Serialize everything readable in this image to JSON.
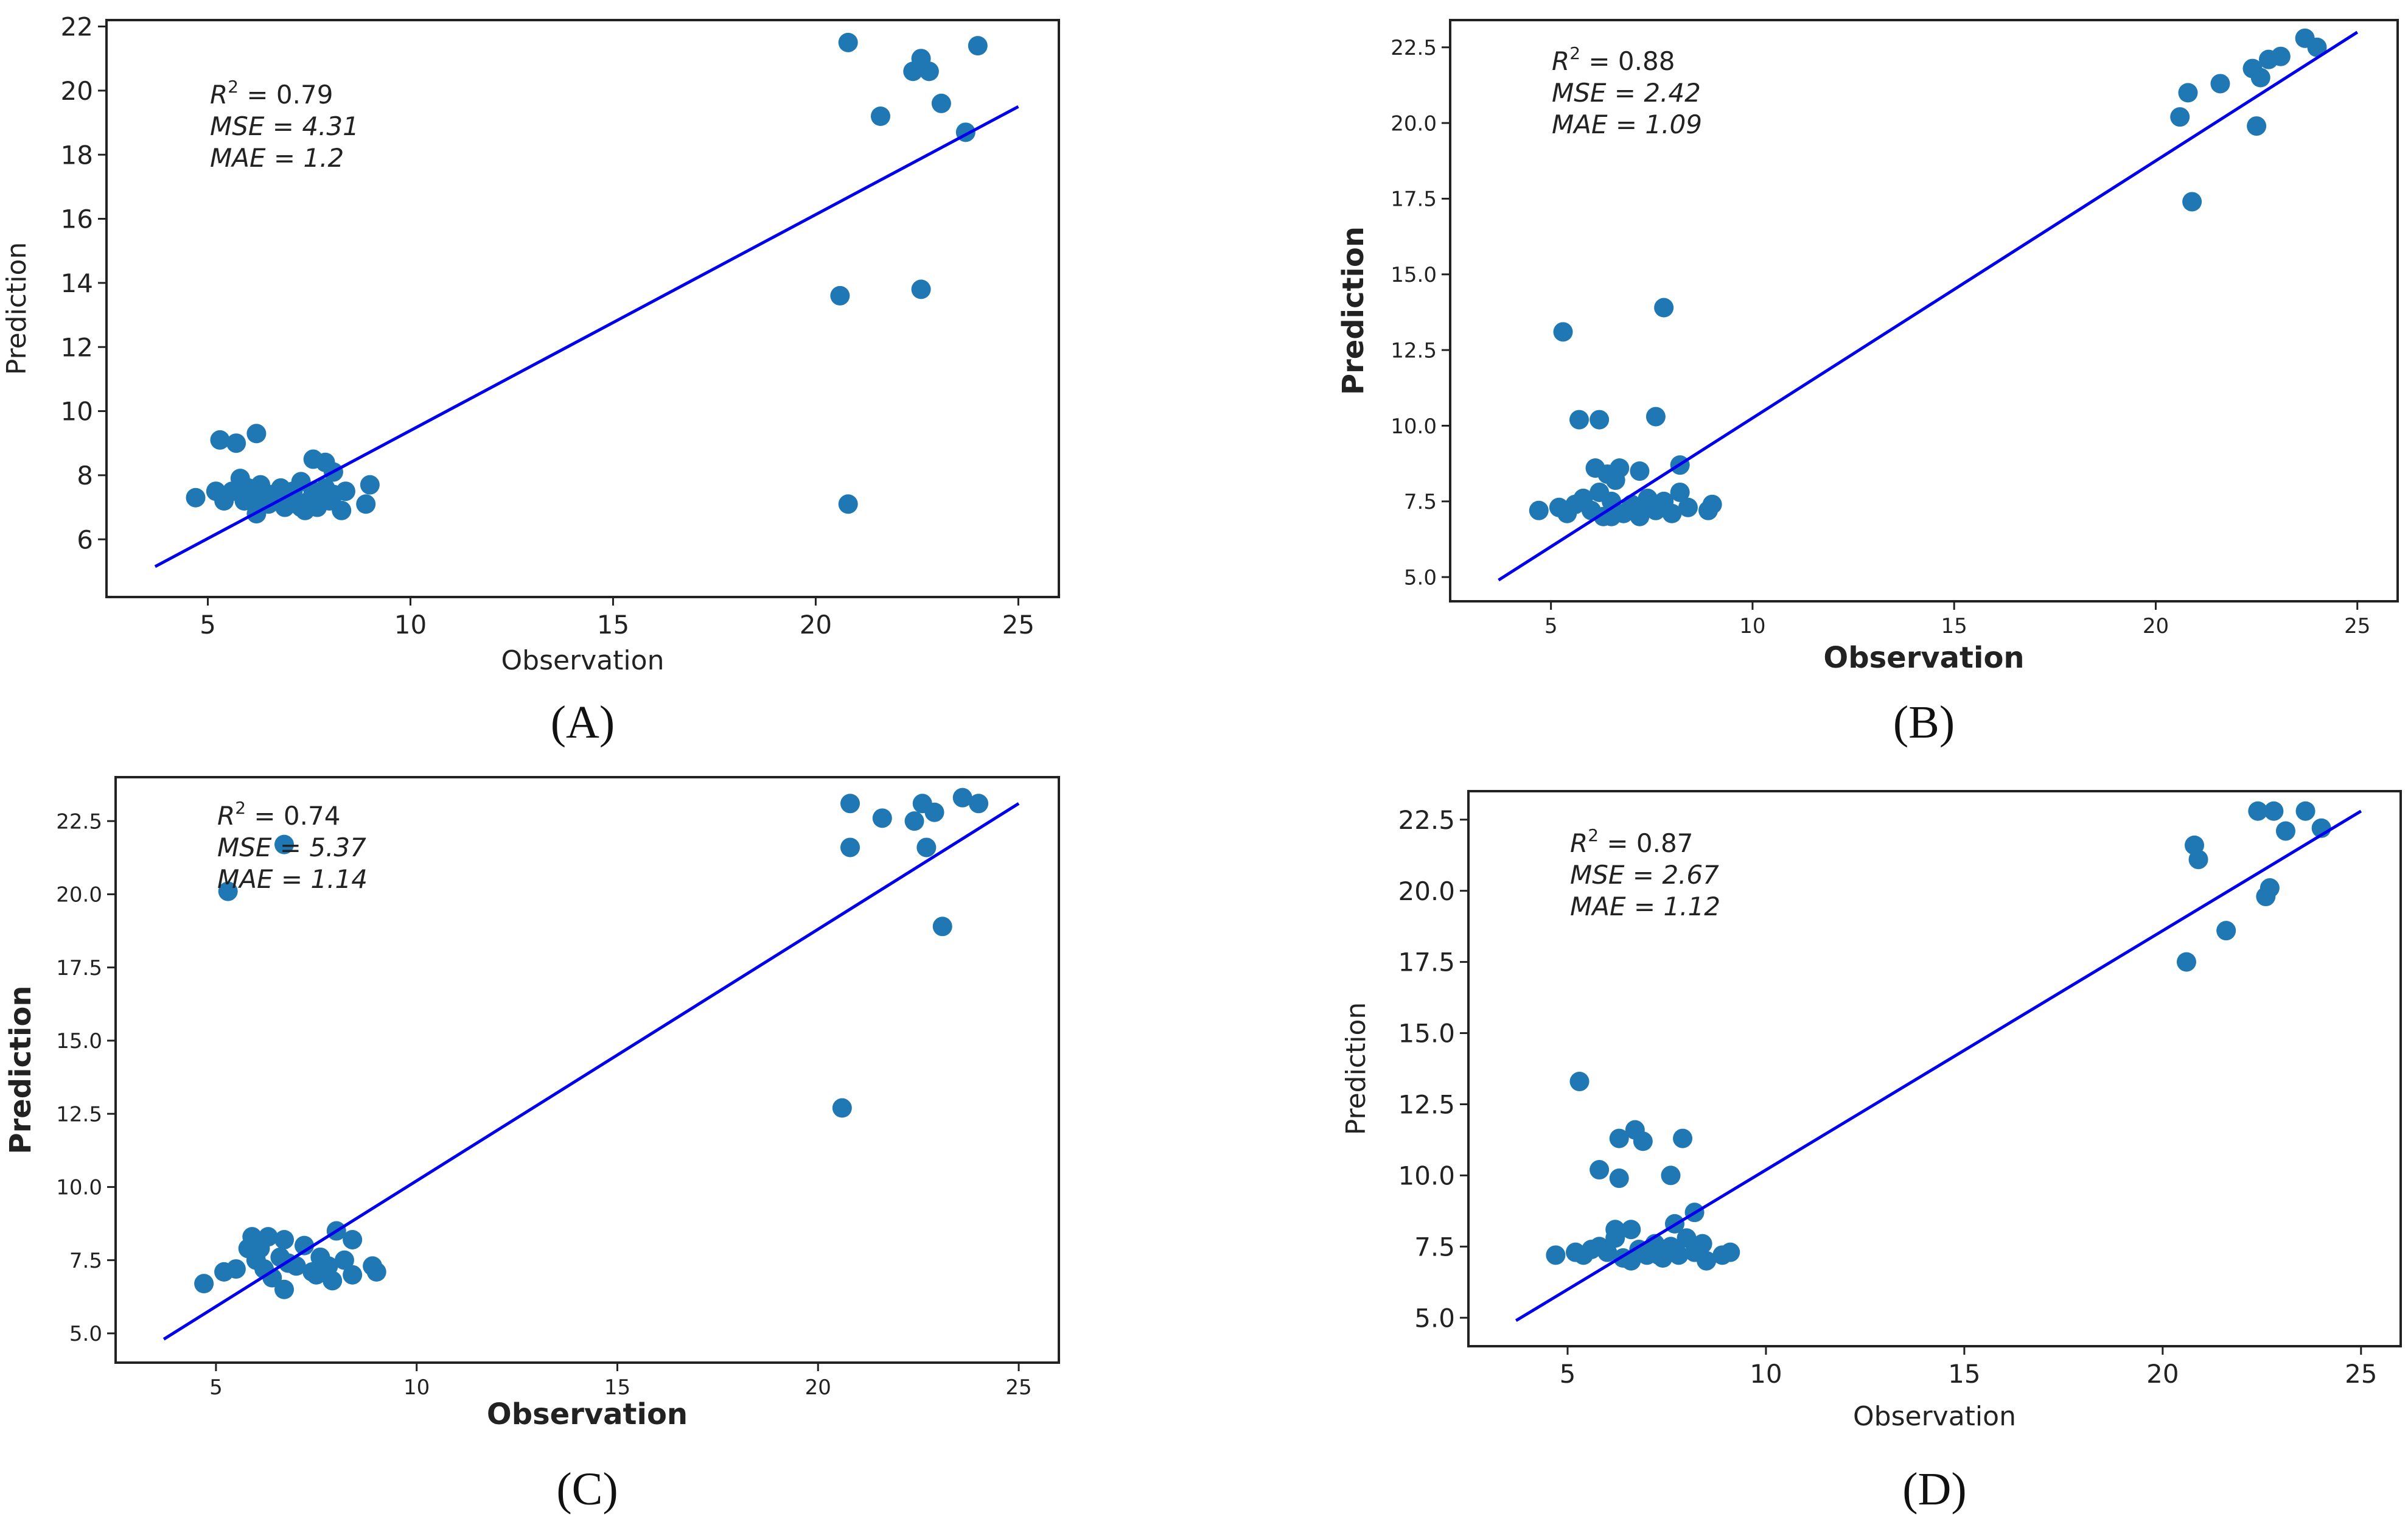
{
  "colors": {
    "point": "#1f77b4",
    "fit_line": "#0000ee",
    "frame": "#222222"
  },
  "chart_data": [
    {
      "type": "scatter",
      "panel": "(A)",
      "caption": "(A)",
      "xlabel": "Observation",
      "ylabel": "Prediction",
      "xlim": [
        2.5,
        26
      ],
      "ylim": [
        4.2,
        22.2
      ],
      "xticks": [
        "5",
        "10",
        "15",
        "20",
        "25"
      ],
      "yticks": [
        "6",
        "8",
        "10",
        "12",
        "14",
        "16",
        "18",
        "20",
        "22"
      ],
      "annotation": {
        "r2_label": "R",
        "r2_value": " = 0.79",
        "mse": "MSE = 4.31",
        "mae": "MAE = 1.2"
      },
      "fit_line": {
        "x": [
          3.7,
          25
        ],
        "y": [
          5.15,
          19.5
        ]
      },
      "points": [
        [
          4.7,
          7.3
        ],
        [
          5.2,
          7.5
        ],
        [
          5.4,
          7.2
        ],
        [
          5.6,
          7.5
        ],
        [
          5.8,
          7.9
        ],
        [
          5.9,
          7.2
        ],
        [
          6.0,
          7.6
        ],
        [
          6.2,
          6.8
        ],
        [
          6.2,
          7.3
        ],
        [
          6.3,
          7.7
        ],
        [
          6.5,
          7.1
        ],
        [
          6.6,
          7.4
        ],
        [
          6.8,
          7.6
        ],
        [
          6.9,
          7.0
        ],
        [
          7.0,
          7.3
        ],
        [
          7.1,
          7.5
        ],
        [
          7.2,
          7.1
        ],
        [
          7.3,
          7.8
        ],
        [
          7.4,
          6.9
        ],
        [
          7.5,
          7.2
        ],
        [
          7.6,
          7.5
        ],
        [
          7.7,
          7.0
        ],
        [
          7.8,
          7.3
        ],
        [
          7.9,
          7.6
        ],
        [
          8.0,
          7.2
        ],
        [
          8.1,
          7.4
        ],
        [
          8.3,
          6.9
        ],
        [
          8.4,
          7.5
        ],
        [
          8.9,
          7.1
        ],
        [
          9.0,
          7.7
        ],
        [
          5.3,
          9.1
        ],
        [
          5.7,
          9.0
        ],
        [
          6.2,
          9.3
        ],
        [
          7.6,
          8.5
        ],
        [
          7.9,
          8.4
        ],
        [
          8.1,
          8.1
        ],
        [
          6.8,
          7.2
        ],
        [
          7.3,
          7.0
        ],
        [
          20.8,
          21.5
        ],
        [
          22.4,
          20.6
        ],
        [
          22.6,
          21.0
        ],
        [
          22.8,
          20.6
        ],
        [
          23.1,
          19.6
        ],
        [
          21.6,
          19.2
        ],
        [
          23.7,
          18.7
        ],
        [
          24.0,
          21.4
        ],
        [
          20.6,
          13.6
        ],
        [
          22.6,
          13.8
        ],
        [
          20.8,
          7.1
        ]
      ]
    },
    {
      "type": "scatter",
      "panel": "(B)",
      "caption": "(B)",
      "xlabel": "Observation",
      "ylabel": "Prediction",
      "xlim": [
        2.5,
        26
      ],
      "ylim": [
        4.2,
        23.4
      ],
      "xticks": [
        "5",
        "10",
        "15",
        "20",
        "25"
      ],
      "yticks": [
        "5.0",
        "7.5",
        "10.0",
        "12.5",
        "15.0",
        "17.5",
        "20.0",
        "22.5"
      ],
      "annotation": {
        "r2_label": "R",
        "r2_value": " = 0.88",
        "mse": "MSE = 2.42",
        "mae": "MAE = 1.09"
      },
      "fit_line": {
        "x": [
          3.7,
          25
        ],
        "y": [
          4.9,
          23.0
        ]
      },
      "points": [
        [
          4.7,
          7.2
        ],
        [
          5.2,
          7.3
        ],
        [
          5.4,
          7.1
        ],
        [
          5.6,
          7.4
        ],
        [
          5.8,
          7.6
        ],
        [
          6.0,
          7.2
        ],
        [
          6.2,
          7.8
        ],
        [
          6.3,
          7.0
        ],
        [
          6.5,
          7.5
        ],
        [
          6.6,
          8.2
        ],
        [
          6.8,
          7.1
        ],
        [
          7.0,
          7.4
        ],
        [
          7.2,
          7.0
        ],
        [
          7.4,
          7.6
        ],
        [
          7.6,
          7.2
        ],
        [
          7.8,
          7.5
        ],
        [
          8.0,
          7.1
        ],
        [
          8.2,
          7.8
        ],
        [
          8.4,
          7.3
        ],
        [
          8.9,
          7.2
        ],
        [
          9.0,
          7.4
        ],
        [
          6.1,
          8.6
        ],
        [
          6.4,
          8.4
        ],
        [
          6.7,
          8.6
        ],
        [
          7.2,
          8.5
        ],
        [
          8.2,
          8.7
        ],
        [
          5.3,
          13.1
        ],
        [
          5.7,
          10.2
        ],
        [
          6.2,
          10.2
        ],
        [
          7.6,
          10.3
        ],
        [
          7.8,
          13.9
        ],
        [
          6.5,
          7.0
        ],
        [
          7.3,
          7.3
        ],
        [
          20.6,
          20.2
        ],
        [
          20.8,
          21.0
        ],
        [
          21.6,
          21.3
        ],
        [
          22.4,
          21.8
        ],
        [
          22.6,
          21.5
        ],
        [
          22.8,
          22.1
        ],
        [
          23.1,
          22.2
        ],
        [
          23.7,
          22.8
        ],
        [
          24.0,
          22.5
        ],
        [
          22.5,
          19.9
        ],
        [
          20.9,
          17.4
        ]
      ]
    },
    {
      "type": "scatter",
      "panel": "(C)",
      "caption": "(C)",
      "xlabel": "Observation",
      "ylabel": "Prediction",
      "xlim": [
        2.5,
        26
      ],
      "ylim": [
        4.0,
        24.0
      ],
      "xticks": [
        "5",
        "10",
        "15",
        "20",
        "25"
      ],
      "yticks": [
        "5.0",
        "7.5",
        "10.0",
        "12.5",
        "15.0",
        "17.5",
        "20.0",
        "22.5"
      ],
      "annotation": {
        "r2_label": "R",
        "r2_value": " = 0.74",
        "mse": "MSE = 5.37",
        "mae": "MAE = 1.14"
      },
      "fit_line": {
        "x": [
          3.7,
          25
        ],
        "y": [
          4.8,
          23.1
        ]
      },
      "points": [
        [
          4.7,
          6.7
        ],
        [
          5.2,
          7.1
        ],
        [
          5.5,
          7.2
        ],
        [
          5.8,
          7.9
        ],
        [
          5.9,
          8.3
        ],
        [
          6.0,
          7.5
        ],
        [
          6.2,
          7.2
        ],
        [
          6.3,
          8.3
        ],
        [
          6.4,
          6.9
        ],
        [
          6.6,
          7.6
        ],
        [
          6.7,
          8.2
        ],
        [
          6.8,
          7.4
        ],
        [
          6.7,
          6.5
        ],
        [
          7.0,
          7.3
        ],
        [
          7.2,
          8.0
        ],
        [
          7.4,
          7.1
        ],
        [
          7.6,
          7.6
        ],
        [
          7.8,
          7.3
        ],
        [
          7.9,
          6.8
        ],
        [
          8.0,
          8.5
        ],
        [
          8.2,
          7.5
        ],
        [
          8.4,
          8.2
        ],
        [
          8.4,
          7.0
        ],
        [
          8.9,
          7.3
        ],
        [
          9.0,
          7.1
        ],
        [
          6.1,
          7.9
        ],
        [
          7.5,
          7.0
        ],
        [
          5.3,
          20.1
        ],
        [
          6.7,
          21.7
        ],
        [
          20.8,
          23.1
        ],
        [
          21.6,
          22.6
        ],
        [
          22.4,
          22.5
        ],
        [
          22.6,
          23.1
        ],
        [
          22.7,
          21.6
        ],
        [
          22.9,
          22.8
        ],
        [
          23.6,
          23.3
        ],
        [
          24.0,
          23.1
        ],
        [
          20.8,
          21.6
        ],
        [
          23.1,
          18.9
        ],
        [
          20.6,
          12.7
        ]
      ]
    },
    {
      "type": "scatter",
      "panel": "(D)",
      "caption": "(D)",
      "xlabel": "Observation",
      "ylabel": "Prediction",
      "xlim": [
        2.5,
        26
      ],
      "ylim": [
        4.0,
        23.5
      ],
      "xticks": [
        "5",
        "10",
        "15",
        "20",
        "25"
      ],
      "yticks": [
        "5.0",
        "7.5",
        "10.0",
        "12.5",
        "15.0",
        "17.5",
        "20.0",
        "22.5"
      ],
      "annotation": {
        "r2_label": "R",
        "r2_value": " = 0.87",
        "mse": "MSE = 2.67",
        "mae": "MAE = 1.12"
      },
      "fit_line": {
        "x": [
          3.7,
          25
        ],
        "y": [
          4.9,
          22.8
        ]
      },
      "points": [
        [
          4.7,
          7.2
        ],
        [
          5.2,
          7.3
        ],
        [
          5.4,
          7.2
        ],
        [
          5.6,
          7.4
        ],
        [
          5.8,
          7.5
        ],
        [
          6.0,
          7.3
        ],
        [
          6.2,
          7.8
        ],
        [
          6.2,
          8.1
        ],
        [
          6.4,
          7.1
        ],
        [
          6.6,
          8.1
        ],
        [
          6.8,
          7.4
        ],
        [
          7.0,
          7.2
        ],
        [
          7.2,
          7.6
        ],
        [
          7.4,
          7.1
        ],
        [
          7.6,
          7.5
        ],
        [
          7.8,
          7.2
        ],
        [
          8.0,
          7.8
        ],
        [
          8.2,
          7.3
        ],
        [
          8.4,
          7.6
        ],
        [
          8.5,
          7.0
        ],
        [
          8.9,
          7.2
        ],
        [
          9.1,
          7.3
        ],
        [
          7.7,
          8.3
        ],
        [
          8.2,
          8.7
        ],
        [
          6.6,
          7.0
        ],
        [
          7.3,
          7.2
        ],
        [
          5.3,
          13.3
        ],
        [
          5.8,
          10.2
        ],
        [
          6.3,
          9.9
        ],
        [
          6.3,
          11.3
        ],
        [
          6.7,
          11.6
        ],
        [
          6.9,
          11.2
        ],
        [
          7.6,
          10.0
        ],
        [
          7.9,
          11.3
        ],
        [
          20.8,
          21.6
        ],
        [
          20.9,
          21.1
        ],
        [
          22.4,
          22.8
        ],
        [
          22.8,
          22.8
        ],
        [
          23.1,
          22.1
        ],
        [
          23.6,
          22.8
        ],
        [
          24.0,
          22.2
        ],
        [
          22.7,
          20.1
        ],
        [
          22.6,
          19.8
        ],
        [
          21.6,
          18.6
        ],
        [
          20.6,
          17.5
        ]
      ]
    }
  ]
}
